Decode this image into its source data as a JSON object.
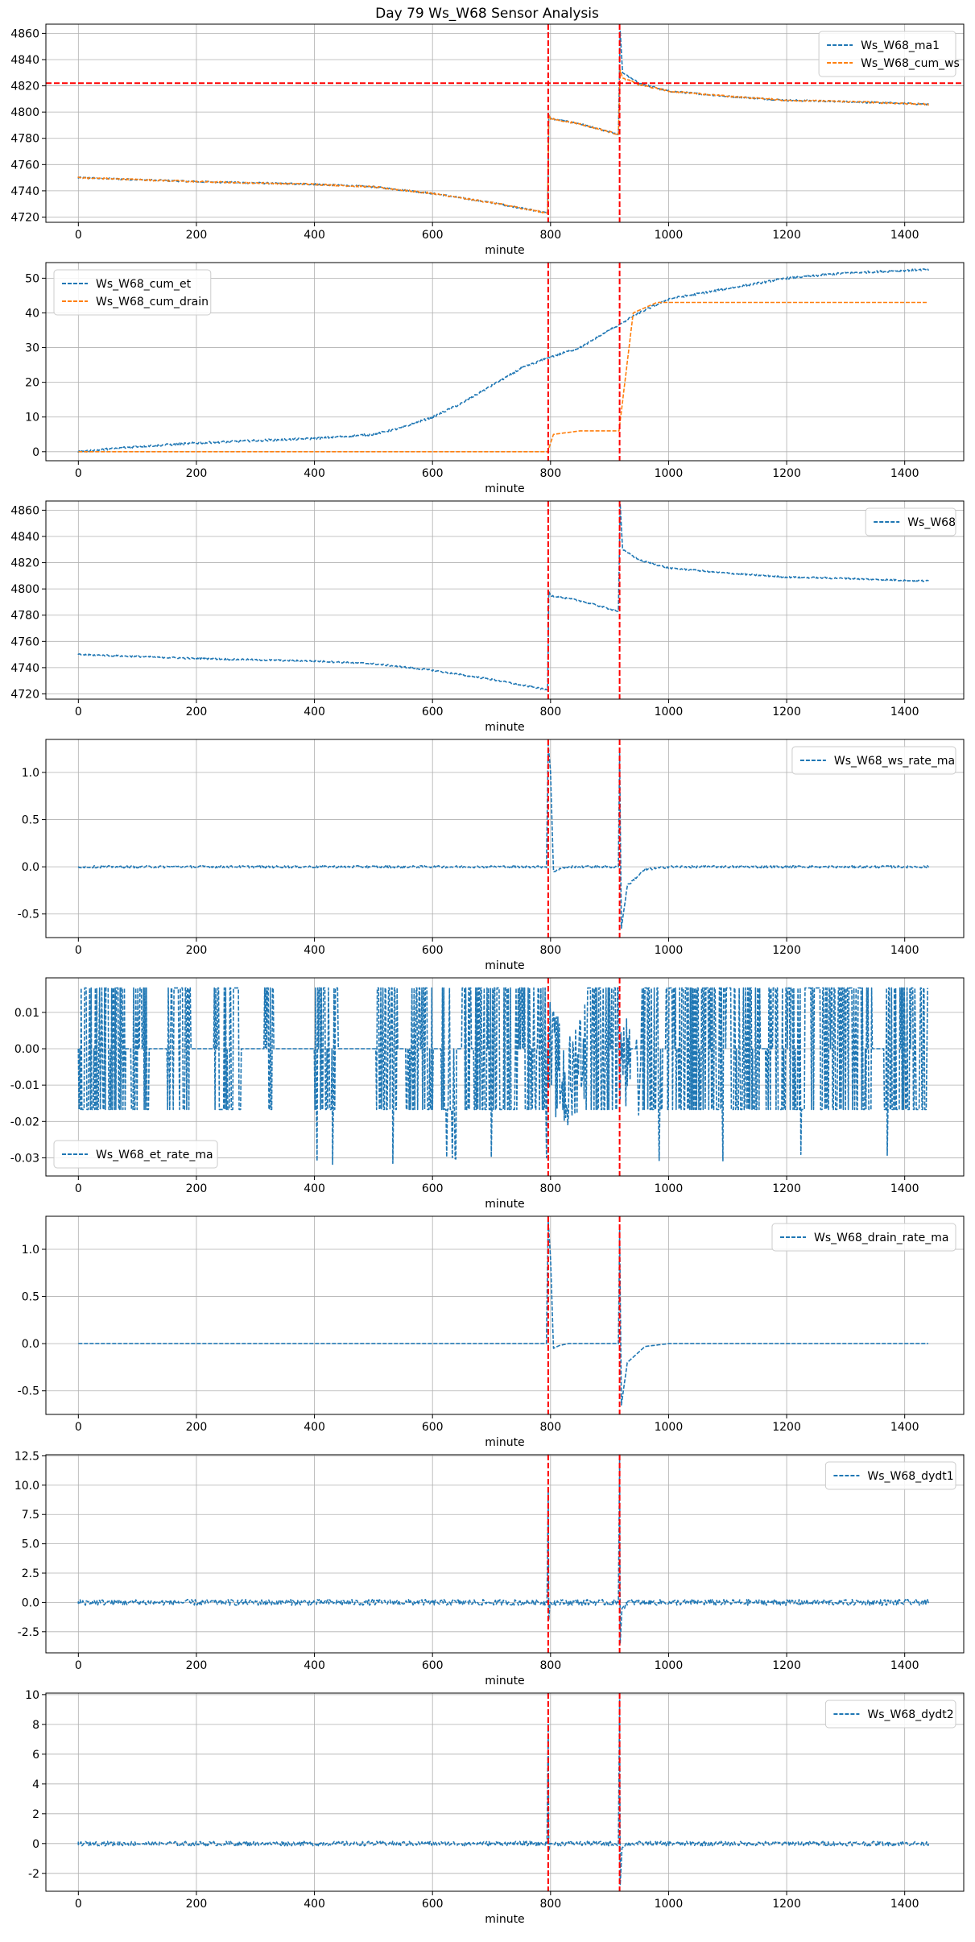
{
  "figure_title": "Day 79 Ws_W68 Sensor Analysis",
  "colors": {
    "blue": "#1f77b4",
    "orange": "#ff7f0e",
    "event": "#ff0000",
    "grid": "#b0b0b0"
  },
  "chart_data": [
    {
      "type": "line",
      "xlabel": "minute",
      "xlim": [
        -55,
        1500
      ],
      "xticks": [
        0,
        200,
        400,
        600,
        800,
        1000,
        1200,
        1400
      ],
      "ylim": [
        4716,
        4867
      ],
      "yticks": [
        4720,
        4740,
        4760,
        4780,
        4800,
        4820,
        4840,
        4860
      ],
      "legend_loc": "top-right",
      "vlines": [
        796,
        917
      ],
      "hline": 4822,
      "series": [
        {
          "name": "Ws_W68_ma1",
          "color": "blue",
          "noise": 0.6,
          "points": [
            [
              0,
              4750
            ],
            [
              200,
              4747
            ],
            [
              400,
              4745
            ],
            [
              500,
              4743
            ],
            [
              600,
              4738
            ],
            [
              700,
              4731
            ],
            [
              760,
              4726
            ],
            [
              795,
              4723
            ],
            [
              797,
              4798
            ],
            [
              800,
              4795
            ],
            [
              850,
              4791
            ],
            [
              915,
              4783
            ],
            [
              918,
              4862
            ],
            [
              922,
              4830
            ],
            [
              950,
              4822
            ],
            [
              1000,
              4816
            ],
            [
              1100,
              4812
            ],
            [
              1200,
              4809
            ],
            [
              1300,
              4808
            ],
            [
              1440,
              4806
            ]
          ]
        },
        {
          "name": "Ws_W68_cum_ws",
          "color": "orange",
          "noise": 0.6,
          "points": [
            [
              0,
              4750
            ],
            [
              200,
              4747
            ],
            [
              400,
              4745
            ],
            [
              500,
              4743
            ],
            [
              600,
              4738
            ],
            [
              700,
              4731
            ],
            [
              760,
              4726
            ],
            [
              795,
              4723
            ],
            [
              797,
              4798
            ],
            [
              800,
              4795
            ],
            [
              850,
              4791
            ],
            [
              915,
              4783
            ],
            [
              918,
              4832
            ],
            [
              922,
              4826
            ],
            [
              950,
              4821
            ],
            [
              1000,
              4816
            ],
            [
              1100,
              4812
            ],
            [
              1200,
              4809
            ],
            [
              1300,
              4808
            ],
            [
              1440,
              4806
            ]
          ]
        }
      ]
    },
    {
      "type": "line",
      "xlabel": "minute",
      "xlim": [
        -55,
        1500
      ],
      "xticks": [
        0,
        200,
        400,
        600,
        800,
        1000,
        1200,
        1400
      ],
      "ylim": [
        -2.6,
        54.5
      ],
      "yticks": [
        0,
        10,
        20,
        30,
        40,
        50
      ],
      "legend_loc": "top-left",
      "vlines": [
        796,
        917
      ],
      "series": [
        {
          "name": "Ws_W68_cum_et",
          "color": "blue",
          "noise": 0.3,
          "points": [
            [
              0,
              0
            ],
            [
              100,
              1.5
            ],
            [
              200,
              2.5
            ],
            [
              300,
              3.2
            ],
            [
              400,
              3.8
            ],
            [
              500,
              5
            ],
            [
              550,
              7
            ],
            [
              600,
              10
            ],
            [
              650,
              14
            ],
            [
              700,
              19
            ],
            [
              750,
              24
            ],
            [
              795,
              27
            ],
            [
              850,
              30
            ],
            [
              900,
              35
            ],
            [
              920,
              37
            ],
            [
              950,
              40
            ],
            [
              1000,
              44
            ],
            [
              1100,
              47
            ],
            [
              1200,
              50
            ],
            [
              1300,
              51.5
            ],
            [
              1440,
              52.5
            ]
          ]
        },
        {
          "name": "Ws_W68_cum_drain",
          "color": "orange",
          "noise": 0,
          "points": [
            [
              0,
              0
            ],
            [
              795,
              0
            ],
            [
              805,
              5
            ],
            [
              850,
              6
            ],
            [
              916,
              6
            ],
            [
              940,
              40
            ],
            [
              980,
              43
            ],
            [
              1440,
              43
            ]
          ]
        }
      ]
    },
    {
      "type": "line",
      "xlabel": "minute",
      "xlim": [
        -55,
        1500
      ],
      "xticks": [
        0,
        200,
        400,
        600,
        800,
        1000,
        1200,
        1400
      ],
      "ylim": [
        4716,
        4867
      ],
      "yticks": [
        4720,
        4740,
        4760,
        4780,
        4800,
        4820,
        4840,
        4860
      ],
      "legend_loc": "top-right",
      "vlines": [
        796,
        917
      ],
      "series": [
        {
          "name": "Ws_W68",
          "color": "blue",
          "noise": 0.6,
          "points": [
            [
              0,
              4750
            ],
            [
              200,
              4747
            ],
            [
              400,
              4745
            ],
            [
              500,
              4743
            ],
            [
              600,
              4738
            ],
            [
              700,
              4731
            ],
            [
              760,
              4726
            ],
            [
              795,
              4723
            ],
            [
              797,
              4798
            ],
            [
              800,
              4795
            ],
            [
              850,
              4791
            ],
            [
              915,
              4783
            ],
            [
              918,
              4865
            ],
            [
              922,
              4830
            ],
            [
              950,
              4822
            ],
            [
              1000,
              4816
            ],
            [
              1100,
              4812
            ],
            [
              1200,
              4809
            ],
            [
              1300,
              4808
            ],
            [
              1440,
              4806
            ]
          ]
        }
      ]
    },
    {
      "type": "line",
      "xlabel": "minute",
      "xlim": [
        -55,
        1500
      ],
      "xticks": [
        0,
        200,
        400,
        600,
        800,
        1000,
        1200,
        1400
      ],
      "ylim": [
        -0.75,
        1.35
      ],
      "yticks": [
        -0.5,
        0.0,
        0.5,
        1.0
      ],
      "yfmt": 1,
      "legend_loc": "top-right",
      "vlines": [
        796,
        917
      ],
      "series": [
        {
          "name": "Ws_W68_ws_rate_ma",
          "color": "blue",
          "noise": 0.012,
          "points": [
            [
              0,
              0
            ],
            [
              793,
              0
            ],
            [
              796,
              1.3
            ],
            [
              800,
              1.0
            ],
            [
              805,
              -0.05
            ],
            [
              815,
              -0.02
            ],
            [
              830,
              0
            ],
            [
              915,
              0
            ],
            [
              917,
              1.2
            ],
            [
              920,
              -0.65
            ],
            [
              930,
              -0.2
            ],
            [
              960,
              -0.03
            ],
            [
              1000,
              0
            ],
            [
              1440,
              0
            ]
          ]
        }
      ]
    },
    {
      "type": "line",
      "xlabel": "minute",
      "xlim": [
        -55,
        1500
      ],
      "xticks": [
        0,
        200,
        400,
        600,
        800,
        1000,
        1200,
        1400
      ],
      "ylim": [
        -0.035,
        0.0195
      ],
      "yticks": [
        -0.03,
        -0.02,
        -0.01,
        0.0,
        0.01
      ],
      "yfmt": 2,
      "legend_loc": "bottom-left",
      "vlines": [
        796,
        917
      ],
      "series": [
        {
          "name": "Ws_W68_et_rate_ma",
          "color": "blue",
          "noise": 0,
          "points": [
            [
              0,
              0
            ],
            [
              795,
              0
            ],
            [
              830,
              -0.012
            ],
            [
              850,
              0
            ],
            [
              915,
              0
            ],
            [
              945,
              -0.012
            ],
            [
              960,
              0
            ],
            [
              1440,
              0
            ]
          ]
        }
      ]
    },
    {
      "type": "line",
      "xlabel": "minute",
      "xlim": [
        -55,
        1500
      ],
      "xticks": [
        0,
        200,
        400,
        600,
        800,
        1000,
        1200,
        1400
      ],
      "ylim": [
        -0.75,
        1.35
      ],
      "yticks": [
        -0.5,
        0.0,
        0.5,
        1.0
      ],
      "yfmt": 1,
      "legend_loc": "top-right",
      "vlines": [
        796,
        917
      ],
      "series": [
        {
          "name": "Ws_W68_drain_rate_ma",
          "color": "blue",
          "noise": 0,
          "points": [
            [
              0,
              0
            ],
            [
              793,
              0
            ],
            [
              796,
              1.3
            ],
            [
              800,
              0.9
            ],
            [
              805,
              -0.05
            ],
            [
              815,
              -0.02
            ],
            [
              830,
              0
            ],
            [
              915,
              0
            ],
            [
              917,
              1.2
            ],
            [
              920,
              -0.65
            ],
            [
              930,
              -0.2
            ],
            [
              960,
              -0.03
            ],
            [
              1000,
              0
            ],
            [
              1440,
              0
            ]
          ]
        }
      ]
    },
    {
      "type": "line",
      "xlabel": "minute",
      "xlim": [
        -55,
        1500
      ],
      "xticks": [
        0,
        200,
        400,
        600,
        800,
        1000,
        1200,
        1400
      ],
      "ylim": [
        -4.3,
        12.6
      ],
      "yticks": [
        -2.5,
        0.0,
        2.5,
        5.0,
        7.5,
        10.0,
        12.5
      ],
      "yfmt": 1,
      "legend_loc": "top-right",
      "vlines": [
        796,
        917
      ],
      "series": [
        {
          "name": "Ws_W68_dydt1",
          "color": "blue",
          "noise": 0.25,
          "points": [
            [
              0,
              0
            ],
            [
              794,
              0
            ],
            [
              796,
              9.5
            ],
            [
              797,
              -1.5
            ],
            [
              799,
              0
            ],
            [
              915,
              0
            ],
            [
              917,
              12.3
            ],
            [
              918,
              -3.5
            ],
            [
              921,
              -0.5
            ],
            [
              930,
              0
            ],
            [
              1440,
              0
            ]
          ]
        }
      ]
    },
    {
      "type": "line",
      "xlabel": "minute",
      "xlim": [
        -55,
        1500
      ],
      "xticks": [
        0,
        200,
        400,
        600,
        800,
        1000,
        1200,
        1400
      ],
      "ylim": [
        -3.2,
        10.1
      ],
      "yticks": [
        -2,
        0,
        2,
        4,
        6,
        8,
        10
      ],
      "legend_loc": "top-right",
      "vlines": [
        796,
        917
      ],
      "series": [
        {
          "name": "Ws_W68_dydt2",
          "color": "blue",
          "noise": 0.15,
          "points": [
            [
              0,
              0
            ],
            [
              794,
              0
            ],
            [
              796,
              8
            ],
            [
              797,
              -0.5
            ],
            [
              799,
              0
            ],
            [
              915,
              0
            ],
            [
              917,
              9.7
            ],
            [
              918,
              -2.8
            ],
            [
              921,
              -0.3
            ],
            [
              930,
              0
            ],
            [
              1440,
              0
            ]
          ]
        }
      ]
    }
  ]
}
